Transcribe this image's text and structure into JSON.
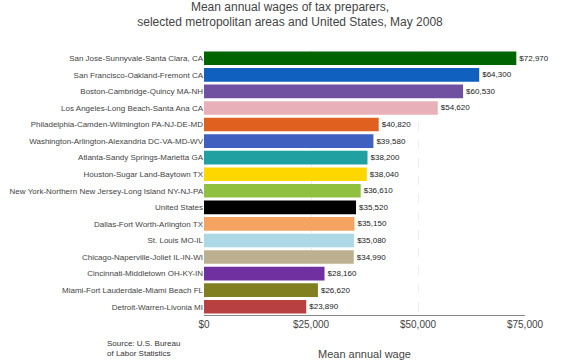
{
  "chart_data": {
    "type": "bar",
    "orientation": "horizontal",
    "title": "Mean annual wages of tax preparers,\nselected metropolitan areas and United States, May 2008",
    "xlabel": "Mean annual wage",
    "annotations": [
      "Source: U.S. Bureau\nof Labor Statistics"
    ],
    "categories": [
      "Detroit-Warren-Livonia MI",
      "Miami-Fort Lauderdale-Miami Beach FL",
      "Cincinnati-Middletown OH-KY-IN",
      "Chicago-Naperville-Joliet IL-IN-WI",
      "St. Louis MO-IL",
      "Dallas-Fort Worth-Arlington TX",
      "United States",
      "New York-Northern New Jersey-Long Island NY-NJ-PA",
      "Houston-Sugar Land-Baytown TX",
      "Atlanta-Sandy Springs-Marietta GA",
      "Washington-Arlington-Alexandria DC-VA-MD-WV",
      "Philadelphia-Camden-Wilmington PA-NJ-DE-MD",
      "Los Angeles-Long Beach-Santa Ana CA",
      "Boston-Cambridge-Quincy MA-NH",
      "San Francisco-Oakland-Fremont CA",
      "San Jose-Sunnyvale-Santa Clara, CA"
    ],
    "values": [
      23890,
      26620,
      28160,
      34990,
      35080,
      35150,
      35520,
      36610,
      38040,
      38200,
      39580,
      40820,
      54620,
      60530,
      64300,
      72970
    ],
    "value_labels": [
      "$23,890",
      "$26,620",
      "$28,160",
      "$34,990",
      "$35,080",
      "$35,150",
      "$35,520",
      "$36,610",
      "$38,040",
      "$38,200",
      "$39,580",
      "$40,820",
      "$54,620",
      "$60,530",
      "$64,300",
      "$72,970"
    ],
    "colors": [
      "#b94040",
      "#808020",
      "#7030a0",
      "#bdb090",
      "#add8e6",
      "#f4a460",
      "#000000",
      "#90c040",
      "#ffd700",
      "#20a0a0",
      "#4060c0",
      "#e06020",
      "#e8b0b8",
      "#7050a0",
      "#1060c0",
      "#006400"
    ],
    "xlim": [
      0,
      75000
    ],
    "xticks": [
      {
        "value": 0,
        "label": "$0"
      },
      {
        "value": 25000,
        "label": "$25,000"
      },
      {
        "value": 50000,
        "label": "$50,000"
      },
      {
        "value": 75000,
        "label": "$75,000"
      }
    ],
    "grid": true,
    "data_labels": true
  }
}
